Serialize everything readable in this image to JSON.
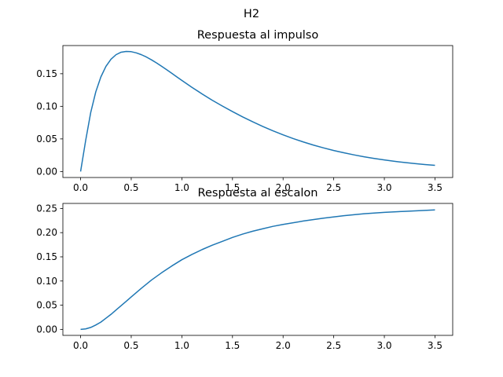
{
  "figure": {
    "suptitle": "H2"
  },
  "colors": {
    "line": "#1f77b4",
    "axes": "#000000",
    "background": "#ffffff"
  },
  "chart_data": [
    {
      "type": "line",
      "title": "Respuesta al impulso",
      "xlabel": "",
      "ylabel": "",
      "xlim": [
        -0.175,
        3.675
      ],
      "ylim": [
        -0.0092,
        0.1932
      ],
      "xticks": [
        0.0,
        0.5,
        1.0,
        1.5,
        2.0,
        2.5,
        3.0,
        3.5
      ],
      "xtick_labels": [
        "0.0",
        "0.5",
        "1.0",
        "1.5",
        "2.0",
        "2.5",
        "3.0",
        "3.5"
      ],
      "yticks": [
        0.0,
        0.05,
        0.1,
        0.15
      ],
      "ytick_labels": [
        "0.00",
        "0.05",
        "0.10",
        "0.15"
      ],
      "grid": false,
      "series": [
        {
          "x": [
            0.0,
            0.05,
            0.1,
            0.15,
            0.2,
            0.25,
            0.3,
            0.35,
            0.4,
            0.45,
            0.5,
            0.55,
            0.6,
            0.65,
            0.7,
            0.75,
            0.8,
            0.85,
            0.9,
            0.95,
            1.0,
            1.1,
            1.2,
            1.3,
            1.4,
            1.5,
            1.6,
            1.7,
            1.8,
            1.9,
            2.0,
            2.1,
            2.2,
            2.3,
            2.4,
            2.5,
            2.6,
            2.7,
            2.8,
            2.9,
            3.0,
            3.1,
            3.2,
            3.3,
            3.4,
            3.5
          ],
          "y": [
            0.0,
            0.0475,
            0.0905,
            0.1222,
            0.145,
            0.1612,
            0.1722,
            0.1792,
            0.183,
            0.1842,
            0.1838,
            0.182,
            0.1792,
            0.1756,
            0.1713,
            0.1665,
            0.1614,
            0.1561,
            0.1507,
            0.1452,
            0.1397,
            0.1291,
            0.119,
            0.1093,
            0.1004,
            0.0919,
            0.0838,
            0.0762,
            0.0691,
            0.0624,
            0.0562,
            0.0505,
            0.0453,
            0.0405,
            0.0362,
            0.0322,
            0.0287,
            0.0255,
            0.0226,
            0.02,
            0.0177,
            0.0157,
            0.0138,
            0.0122,
            0.0107,
            0.0095
          ]
        }
      ]
    },
    {
      "type": "line",
      "title": "Respuesta al escalon",
      "xlabel": "",
      "ylabel": "",
      "xlim": [
        -0.175,
        3.675
      ],
      "ylim": [
        -0.0124,
        0.2604
      ],
      "xticks": [
        0.0,
        0.5,
        1.0,
        1.5,
        2.0,
        2.5,
        3.0,
        3.5
      ],
      "xtick_labels": [
        "0.0",
        "0.5",
        "1.0",
        "1.5",
        "2.0",
        "2.5",
        "3.0",
        "3.5"
      ],
      "yticks": [
        0.0,
        0.05,
        0.1,
        0.15,
        0.2,
        0.25
      ],
      "ytick_labels": [
        "0.00",
        "0.05",
        "0.10",
        "0.15",
        "0.20",
        "0.25"
      ],
      "grid": false,
      "series": [
        {
          "x": [
            0.0,
            0.05,
            0.1,
            0.15,
            0.2,
            0.25,
            0.3,
            0.35,
            0.4,
            0.45,
            0.5,
            0.6,
            0.7,
            0.8,
            0.9,
            1.0,
            1.1,
            1.2,
            1.3,
            1.4,
            1.5,
            1.6,
            1.7,
            1.8,
            1.9,
            2.0,
            2.2,
            2.4,
            2.6,
            2.8,
            3.0,
            3.2,
            3.5
          ],
          "y": [
            0.0,
            0.001,
            0.004,
            0.009,
            0.015,
            0.023,
            0.031,
            0.04,
            0.049,
            0.058,
            0.067,
            0.085,
            0.102,
            0.117,
            0.131,
            0.144,
            0.155,
            0.165,
            0.174,
            0.182,
            0.19,
            0.197,
            0.203,
            0.208,
            0.213,
            0.217,
            0.224,
            0.23,
            0.235,
            0.239,
            0.242,
            0.244,
            0.247
          ]
        }
      ]
    }
  ]
}
